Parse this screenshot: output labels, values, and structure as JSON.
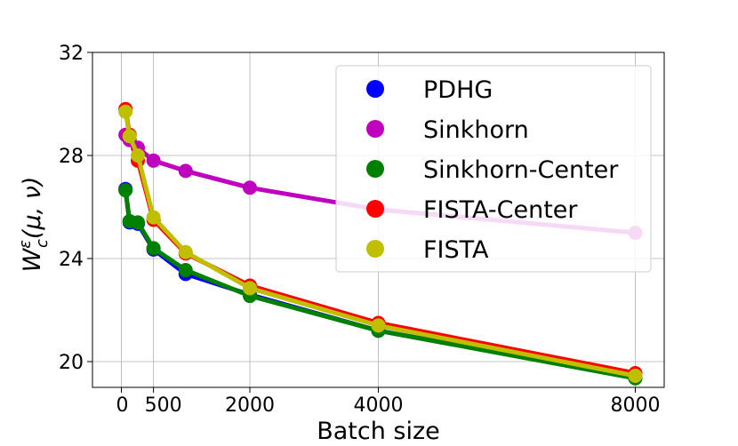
{
  "chart_data": {
    "type": "line",
    "title": "",
    "xlabel": "Batch size",
    "ylabel": "W_c^ε(μ, ν)",
    "ylabel_parts": {
      "base": "W",
      "sup": "ε",
      "sub": "c",
      "args": "(μ, ν)"
    },
    "xlim": [
      -450,
      8450
    ],
    "ylim": [
      19,
      32
    ],
    "xticks": [
      0,
      500,
      2000,
      4000,
      8000
    ],
    "xtick_labels": [
      "0",
      "500",
      "2000",
      "4000",
      "8000"
    ],
    "yticks": [
      20,
      24,
      28,
      32
    ],
    "ytick_labels": [
      "20",
      "24",
      "28",
      "32"
    ],
    "grid": true,
    "legend_position": "upper right",
    "x": [
      64,
      128,
      256,
      500,
      1000,
      2000,
      4000,
      8000
    ],
    "series": [
      {
        "name": "PDHG",
        "color": "#0000ff",
        "values": [
          26.7,
          25.4,
          25.35,
          24.35,
          23.4,
          22.6,
          21.2,
          19.4
        ]
      },
      {
        "name": "Sinkhorn",
        "color": "#bf00bf",
        "values": [
          28.8,
          28.6,
          28.3,
          27.8,
          27.4,
          26.75,
          25.9,
          25.0
        ]
      },
      {
        "name": "Sinkhorn-Center",
        "color": "#008000",
        "values": [
          26.65,
          25.45,
          25.4,
          24.4,
          23.55,
          22.55,
          21.2,
          19.35
        ]
      },
      {
        "name": "FISTA-Center",
        "color": "#ff0000",
        "values": [
          29.8,
          28.8,
          27.8,
          25.5,
          24.2,
          22.95,
          21.5,
          19.55
        ]
      },
      {
        "name": "FISTA",
        "color": "#bfbf00",
        "values": [
          29.7,
          28.75,
          28.0,
          25.6,
          24.25,
          22.85,
          21.4,
          19.45
        ]
      }
    ]
  }
}
